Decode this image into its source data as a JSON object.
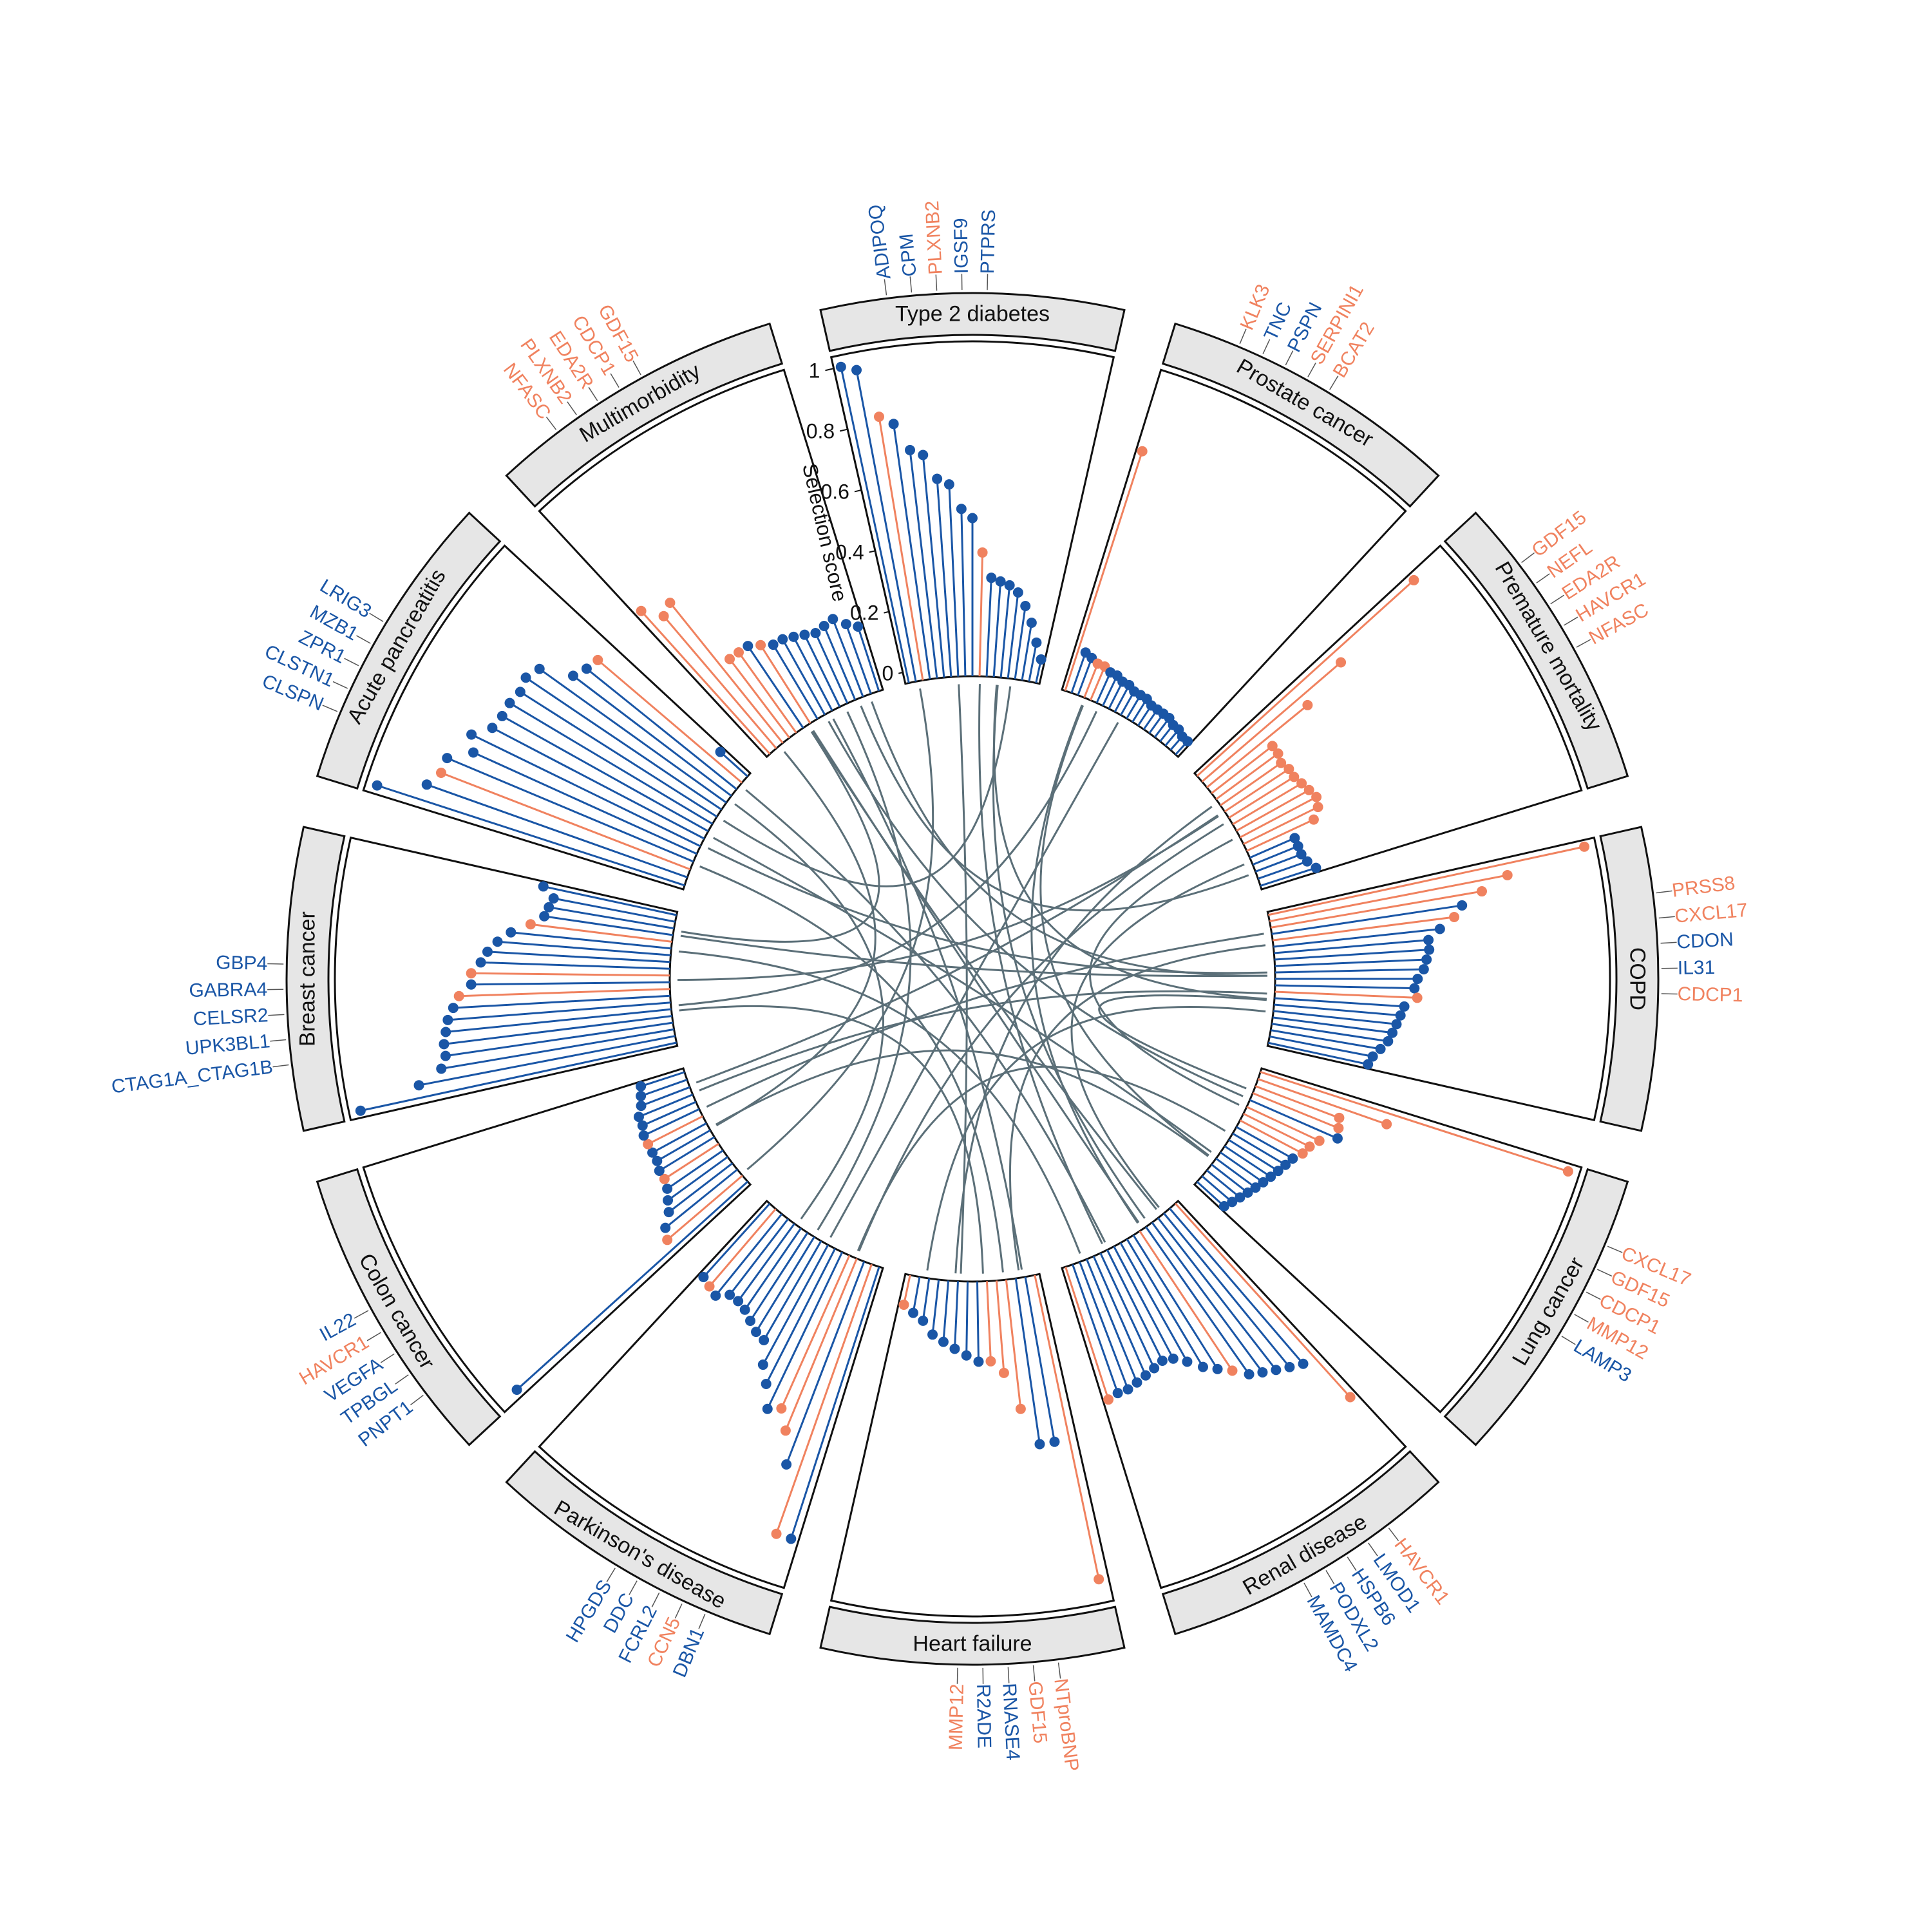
{
  "colors": {
    "protein_a": "#1a56a6",
    "protein_b": "#f0825f",
    "chord": "#5b6f78",
    "strip_fill": "#e6e6e6",
    "outline": "#111111"
  },
  "chart_data": {
    "type": "circular-lollipop",
    "axis": {
      "title": "Selection score",
      "ticks": [
        "0",
        "0.2",
        "0.4",
        "0.6",
        "0.8",
        "1"
      ],
      "range": [
        0,
        1
      ]
    },
    "sectors": [
      {
        "name": "Type 2 diabetes",
        "top_labels": [
          "ADIPOQ",
          "CPM",
          "PLXNB2",
          "IGSF9",
          "PTPRS"
        ],
        "top_colors": [
          "b",
          "b",
          "o",
          "b",
          "b"
        ],
        "values": [
          1.0,
          0.98,
          0.82,
          0.79,
          0.7,
          0.68,
          0.6,
          0.58,
          0.5,
          0.47,
          0.36,
          0.28,
          0.27,
          0.26,
          0.24,
          0.2,
          0.15,
          0.09,
          0.04
        ],
        "colors": [
          "b",
          "b",
          "o",
          "b",
          "b",
          "b",
          "b",
          "b",
          "b",
          "b",
          "o",
          "b",
          "b",
          "b",
          "b",
          "b",
          "b",
          "b",
          "b"
        ]
      },
      {
        "name": "Prostate cancer",
        "top_labels": [
          "KLK3",
          "TNC",
          "PSPN",
          "SERPINI1",
          "BCAT2"
        ],
        "top_colors": [
          "o",
          "b",
          "b",
          "o",
          "o"
        ],
        "values": [
          0.77,
          0.1,
          0.09,
          0.08,
          0.08,
          0.07,
          0.07,
          0.06,
          0.06,
          0.05,
          0.05,
          0.05,
          0.04,
          0.04,
          0.04,
          0.04,
          0.03,
          0.03,
          0.02,
          0.02
        ],
        "colors": [
          "o",
          "b",
          "b",
          "o",
          "o",
          "b",
          "b",
          "b",
          "b",
          "b",
          "b",
          "b",
          "b",
          "b",
          "b",
          "b",
          "b",
          "b",
          "b",
          "b"
        ]
      },
      {
        "name": "Premature mortality",
        "top_labels": [
          "GDF15",
          "NEFL",
          "EDA2R",
          "HAVCR1",
          "NFASC"
        ],
        "top_colors": [
          "o",
          "o",
          "o",
          "o",
          "o"
        ],
        "values": [
          0.9,
          0.55,
          0.38,
          0.21,
          0.21,
          0.2,
          0.21,
          0.21,
          0.22,
          0.23,
          0.24,
          0.23,
          0.2,
          0.12,
          0.12,
          0.12,
          0.13,
          0.15
        ],
        "colors": [
          "o",
          "o",
          "o",
          "o",
          "o",
          "o",
          "o",
          "o",
          "o",
          "o",
          "o",
          "o",
          "o",
          "b",
          "b",
          "b",
          "b",
          "b"
        ]
      },
      {
        "name": "COPD",
        "top_labels": [
          "PRSS8",
          "CXCL17",
          "CDON",
          "IL31",
          "CDCP1"
        ],
        "top_colors": [
          "o",
          "o",
          "b",
          "b",
          "o"
        ],
        "values": [
          1.0,
          0.74,
          0.65,
          0.58,
          0.55,
          0.5,
          0.46,
          0.46,
          0.45,
          0.44,
          0.42,
          0.41,
          0.42,
          0.38,
          0.37,
          0.36,
          0.35,
          0.34,
          0.32,
          0.3,
          0.29
        ],
        "colors": [
          "o",
          "o",
          "o",
          "b",
          "o",
          "b",
          "b",
          "b",
          "b",
          "b",
          "b",
          "b",
          "o",
          "b",
          "b",
          "b",
          "b",
          "b",
          "b",
          "b",
          "b"
        ]
      },
      {
        "name": "Lung cancer",
        "top_labels": [
          "CXCL17",
          "GDF15",
          "CDCP1",
          "MMP12",
          "LAMP3"
        ],
        "top_colors": [
          "o",
          "o",
          "o",
          "o",
          "b"
        ],
        "values": [
          1.0,
          0.4,
          0.25,
          0.26,
          0.27,
          0.22,
          0.2,
          0.19,
          0.17,
          0.16,
          0.15,
          0.14,
          0.13,
          0.12,
          0.11,
          0.1,
          0.09,
          0.08
        ],
        "colors": [
          "o",
          "o",
          "o",
          "o",
          "b",
          "o",
          "o",
          "o",
          "b",
          "b",
          "b",
          "b",
          "b",
          "b",
          "b",
          "b",
          "b",
          "b"
        ]
      },
      {
        "name": "Renal disease",
        "top_labels": [
          "HAVCR1",
          "LMOD1",
          "HSPB6",
          "PODXL2",
          "MAMDC4"
        ],
        "top_colors": [
          "o",
          "b",
          "b",
          "b",
          "b"
        ],
        "values": [
          0.8,
          0.62,
          0.6,
          0.58,
          0.56,
          0.54,
          0.5,
          0.47,
          0.44,
          0.4,
          0.37,
          0.36,
          0.37,
          0.38,
          0.39,
          0.4,
          0.4,
          0.41
        ],
        "colors": [
          "o",
          "b",
          "b",
          "b",
          "b",
          "b",
          "o",
          "b",
          "b",
          "b",
          "b",
          "b",
          "b",
          "b",
          "b",
          "b",
          "b",
          "o"
        ]
      },
      {
        "name": "Heart failure",
        "top_labels": [
          "NTproBNP",
          "GDF15",
          "RNASE4",
          "R2ADE",
          "MMP12"
        ],
        "top_colors": [
          "o",
          "o",
          "b",
          "b",
          "o"
        ],
        "values": [
          0.96,
          0.5,
          0.5,
          0.38,
          0.26,
          0.22,
          0.22,
          0.2,
          0.18,
          0.16,
          0.14,
          0.1,
          0.08,
          0.06
        ],
        "colors": [
          "o",
          "b",
          "b",
          "o",
          "o",
          "o",
          "b",
          "b",
          "b",
          "b",
          "b",
          "b",
          "b",
          "o"
        ]
      },
      {
        "name": "Parkinson's disease",
        "top_labels": [
          "DBN1",
          "CCN5",
          "FCRL2",
          "DDC",
          "HPGDS"
        ],
        "top_colors": [
          "b",
          "o",
          "b",
          "b",
          "b"
        ],
        "values": [
          0.88,
          0.88,
          0.66,
          0.56,
          0.5,
          0.52,
          0.45,
          0.4,
          0.33,
          0.32,
          0.3,
          0.28,
          0.27,
          0.27,
          0.3,
          0.29,
          0.28
        ],
        "colors": [
          "b",
          "o",
          "b",
          "o",
          "o",
          "b",
          "b",
          "b",
          "b",
          "b",
          "b",
          "b",
          "b",
          "b",
          "b",
          "o",
          "b"
        ]
      },
      {
        "name": "Colon cancer",
        "top_labels": [
          "PNPT1",
          "TPBGL",
          "VEGFA",
          "HAVCR1",
          "IL22"
        ],
        "top_colors": [
          "b",
          "b",
          "b",
          "o",
          "b"
        ],
        "values": [
          0.96,
          0.28,
          0.26,
          0.22,
          0.2,
          0.18,
          0.17,
          0.17,
          0.16,
          0.16,
          0.16,
          0.16,
          0.15,
          0.15,
          0.13,
          0.12,
          0.11
        ],
        "colors": [
          "b",
          "o",
          "b",
          "b",
          "b",
          "b",
          "o",
          "b",
          "b",
          "b",
          "o",
          "b",
          "b",
          "b",
          "b",
          "b",
          "b"
        ]
      },
      {
        "name": "Breast cancer",
        "top_labels": [
          "CTAG1A_CTAG1B",
          "UPK3BL1",
          "CELSR2",
          "GABRA4",
          "GBP4"
        ],
        "top_colors": [
          "b",
          "b",
          "b",
          "b",
          "b"
        ],
        "values": [
          1.0,
          0.8,
          0.72,
          0.7,
          0.7,
          0.69,
          0.68,
          0.66,
          0.64,
          0.6,
          0.6,
          0.57,
          0.55,
          0.52,
          0.48,
          0.42,
          0.38,
          0.37,
          0.36,
          0.4
        ],
        "colors": [
          "b",
          "b",
          "b",
          "b",
          "b",
          "b",
          "b",
          "b",
          "o",
          "b",
          "o",
          "b",
          "b",
          "b",
          "b",
          "o",
          "b",
          "b",
          "b",
          "b"
        ]
      },
      {
        "name": "Acute pancreatitis",
        "top_labels": [
          "CLSPN",
          "CLSTN1",
          "ZPR1",
          "MZB1",
          "LRIG3"
        ],
        "top_colors": [
          "b",
          "b",
          "b",
          "b",
          "b"
        ],
        "values": [
          1.0,
          0.85,
          0.82,
          0.82,
          0.75,
          0.78,
          0.73,
          0.72,
          0.72,
          0.71,
          0.72,
          0.7,
          0.6,
          0.58,
          0.57,
          0.08
        ],
        "colors": [
          "b",
          "b",
          "o",
          "b",
          "b",
          "b",
          "b",
          "b",
          "b",
          "b",
          "b",
          "b",
          "b",
          "b",
          "o",
          "b"
        ]
      },
      {
        "name": "Multimorbidity",
        "top_labels": [
          "NFASC",
          "PLXNB2",
          "EDA2R",
          "CDCP1",
          "GDF15"
        ],
        "top_colors": [
          "o",
          "o",
          "o",
          "o",
          "o"
        ],
        "values": [
          0.58,
          0.52,
          0.54,
          0.28,
          0.28,
          0.28,
          0.26,
          0.24,
          0.24,
          0.23,
          0.22,
          0.21,
          0.22,
          0.23,
          0.2,
          0.18
        ],
        "colors": [
          "o",
          "o",
          "o",
          "o",
          "o",
          "b",
          "o",
          "b",
          "b",
          "b",
          "b",
          "b",
          "b",
          "b",
          "b",
          "b"
        ]
      }
    ],
    "chords": [
      [
        0,
        8
      ],
      [
        0,
        6
      ],
      [
        0,
        5
      ],
      [
        1,
        4
      ],
      [
        1,
        7
      ],
      [
        2,
        5
      ],
      [
        2,
        6
      ],
      [
        2,
        4
      ],
      [
        2,
        11
      ],
      [
        2,
        9
      ],
      [
        3,
        4
      ],
      [
        3,
        8
      ],
      [
        3,
        10
      ],
      [
        3,
        6
      ],
      [
        4,
        11
      ],
      [
        4,
        7
      ],
      [
        5,
        9
      ],
      [
        5,
        11
      ],
      [
        5,
        10
      ],
      [
        6,
        11
      ],
      [
        6,
        9
      ],
      [
        7,
        10
      ],
      [
        7,
        2
      ],
      [
        8,
        11
      ],
      [
        8,
        3
      ],
      [
        9,
        1
      ],
      [
        10,
        0
      ],
      [
        11,
        3
      ],
      [
        11,
        5
      ],
      [
        0,
        3
      ],
      [
        1,
        5
      ],
      [
        3,
        9
      ],
      [
        4,
        8
      ],
      [
        6,
        10
      ],
      [
        7,
        11
      ],
      [
        9,
        11
      ],
      [
        2,
        8
      ],
      [
        5,
        0
      ],
      [
        6,
        3
      ],
      [
        10,
        4
      ]
    ]
  }
}
